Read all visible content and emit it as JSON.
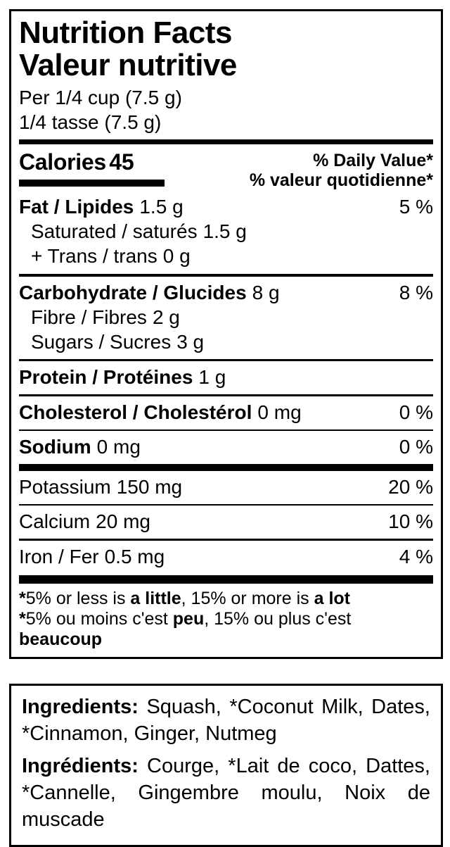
{
  "panel": {
    "title_en": "Nutrition Facts",
    "title_fr": "Valeur nutritive",
    "serving_en": "Per 1/4 cup (7.5 g)",
    "serving_fr": "1/4 tasse (7.5 g)",
    "calories_label": "Calories",
    "calories_value": "45",
    "dv_header_en": "% Daily Value*",
    "dv_header_fr": "% valeur quotidienne*",
    "rows": [
      {
        "name": "Fat / Lipides",
        "amount": "1.5 g",
        "dv": "5 %"
      },
      {
        "name": "Saturated / saturés",
        "amount": "1.5 g",
        "dv": ""
      },
      {
        "name": "+ Trans / trans",
        "amount": "0 g",
        "dv": ""
      },
      {
        "name": "Carbohydrate / Glucides",
        "amount": "8 g",
        "dv": "8 %"
      },
      {
        "name": "Fibre / Fibres",
        "amount": "2 g",
        "dv": ""
      },
      {
        "name": "Sugars / Sucres",
        "amount": "3 g",
        "dv": ""
      },
      {
        "name": "Protein / Protéines",
        "amount": "1 g",
        "dv": ""
      },
      {
        "name": "Cholesterol / Cholestérol",
        "amount": "0 mg",
        "dv": "0 %"
      },
      {
        "name": "Sodium",
        "amount": "0 mg",
        "dv": "0 %"
      },
      {
        "name": "Potassium",
        "amount": "150 mg",
        "dv": "20 %"
      },
      {
        "name": "Calcium",
        "amount": "20 mg",
        "dv": "10 %"
      },
      {
        "name": "Iron / Fer",
        "amount": "0.5 mg",
        "dv": "4 %"
      }
    ],
    "footnote_en": {
      "star": "*",
      "pre": "5% or less is ",
      "bold1": "a little",
      "mid": ", 15% or more is ",
      "bold2": "a lot"
    },
    "footnote_fr": {
      "star": "*",
      "pre": "5% ou moins c'est ",
      "bold1": "peu",
      "mid": ", 15% ou plus c'est ",
      "bold2": "beaucoup"
    }
  },
  "ingredients": {
    "en_label": "Ingredients:",
    "en_text": "Squash, *Coconut Milk, Dates, *Cinnamon, Ginger, Nutmeg",
    "fr_label": "Ingrédients:",
    "fr_text": "Courge, *Lait de coco, Dattes, *Cannelle, Gingembre moulu, Noix de muscade"
  },
  "colors": {
    "ink": "#000000",
    "background": "#ffffff"
  }
}
